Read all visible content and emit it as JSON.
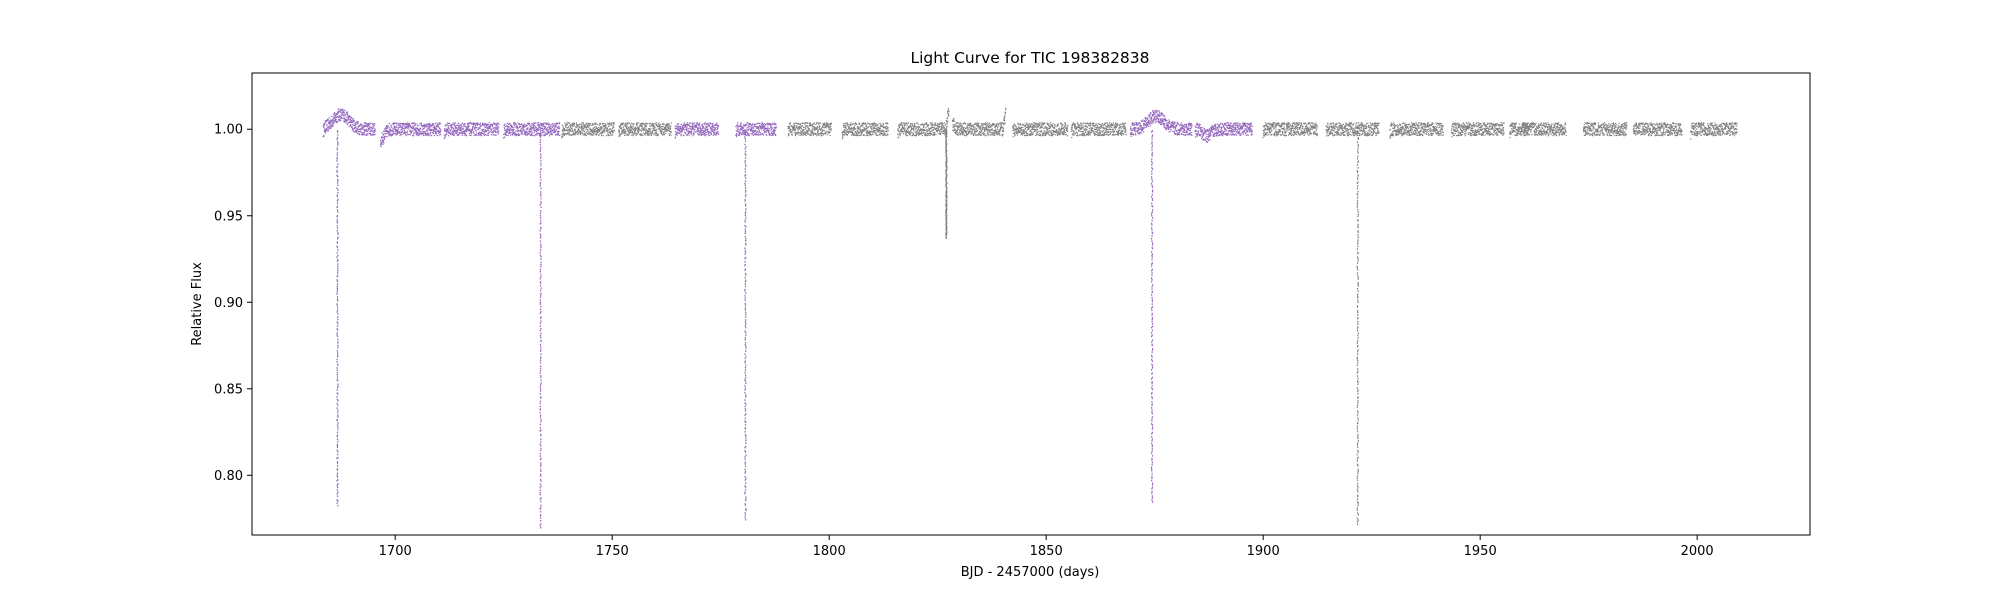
{
  "chart_data": {
    "type": "scatter",
    "title": "Light Curve for TIC 198382838",
    "xlabel": "BJD - 2457000 (days)",
    "ylabel": "Relative Flux",
    "xlim": [
      1667,
      2026
    ],
    "ylim": [
      0.7655,
      1.0325
    ],
    "x_ticks": [
      1700,
      1750,
      1800,
      1850,
      1900,
      1950,
      2000
    ],
    "y_ticks": [
      0.8,
      0.85,
      0.9,
      0.95,
      1.0
    ],
    "grid": false,
    "legend": "none",
    "series": [
      {
        "color": "#9467bd",
        "segments": [
          [
            1683.4,
            1695.4
          ],
          [
            1696.6,
            1710.5
          ],
          [
            1711.3,
            1723.9
          ],
          [
            1725.0,
            1737.9
          ],
          [
            1764.5,
            1774.5
          ],
          [
            1778.5,
            1787.8
          ],
          [
            1869.4,
            1883.6
          ],
          [
            1884.3,
            1897.5
          ]
        ],
        "dips": [
          {
            "x": 1686.7,
            "min": 0.783
          },
          {
            "x": 1733.5,
            "min": 0.77
          },
          {
            "x": 1780.7,
            "min": 0.775
          },
          {
            "x": 1874.4,
            "min": 0.785
          }
        ]
      },
      {
        "color": "#808080",
        "segments": [
          [
            1738.4,
            1750.5
          ],
          [
            1751.5,
            1763.6
          ],
          [
            1790.5,
            1800.5
          ],
          [
            1803.0,
            1813.6
          ],
          [
            1815.8,
            1827.6
          ],
          [
            1828.4,
            1840.7
          ],
          [
            1842.3,
            1855.0
          ],
          [
            1855.8,
            1868.4
          ],
          [
            1900.0,
            1912.5
          ],
          [
            1914.5,
            1926.7
          ],
          [
            1929.2,
            1941.5
          ],
          [
            1943.4,
            1955.5
          ],
          [
            1956.8,
            1961.2
          ],
          [
            1959.5,
            1969.8
          ],
          [
            1973.8,
            1983.8
          ],
          [
            1985.3,
            1996.5
          ],
          [
            1998.5,
            2009.2
          ]
        ],
        "dips": [
          {
            "x": 1827.0,
            "min": 0.938
          },
          {
            "x": 1921.8,
            "min": 0.772
          }
        ]
      }
    ]
  }
}
